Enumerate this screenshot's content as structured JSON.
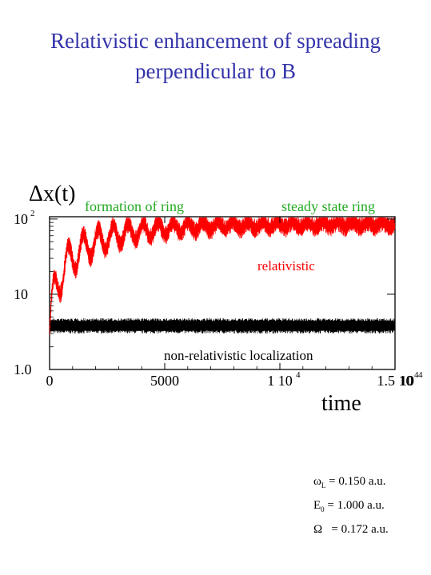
{
  "title_line1": "Relativistic enhancement of spreading",
  "title_line2": "perpendicular to B",
  "colors": {
    "title": "#3333aa",
    "green": "#22aa22",
    "relativistic": "#ff0000",
    "nonrelativistic": "#000000"
  },
  "chart_data": {
    "type": "line",
    "ylabel": "Δx(t)",
    "xlabel": "time",
    "xlim": [
      0,
      15000
    ],
    "ylim": [
      1.0,
      100
    ],
    "yscale": "log",
    "grid": false,
    "x_ticks": [
      {
        "label": "0",
        "value": 0
      },
      {
        "label": "5000",
        "value": 5000
      },
      {
        "label": "1 10",
        "sup": "4",
        "value": 10000
      },
      {
        "label": "1.5 10",
        "sup": "4",
        "value": 15000
      }
    ],
    "y_ticks": [
      {
        "label": "1.0",
        "value": 1.0
      },
      {
        "label": "10",
        "value": 10
      },
      {
        "label": "10",
        "sup": "2",
        "value": 100
      }
    ],
    "series": [
      {
        "name": "relativistic",
        "color": "#ff0000",
        "start": 3.0,
        "plateau": 85,
        "tau": 2400,
        "osc_amp": 0.5,
        "osc_period": 650,
        "noise": 0.08
      },
      {
        "name": "non-relativistic localization",
        "color": "#000000",
        "mean": 3.8,
        "low": 3.0,
        "high": 4.8
      }
    ],
    "annotations": [
      "formation of ring",
      "steady state ring"
    ]
  },
  "params": [
    {
      "sym": "ω",
      "sub": "L",
      "text": " = 0.150  a.u."
    },
    {
      "sym": "E",
      "sub": "0",
      "text": " = 1.000 a.u."
    },
    {
      "sym": "Ω",
      "sub": "",
      "text": "   = 0.172 a.u."
    }
  ]
}
